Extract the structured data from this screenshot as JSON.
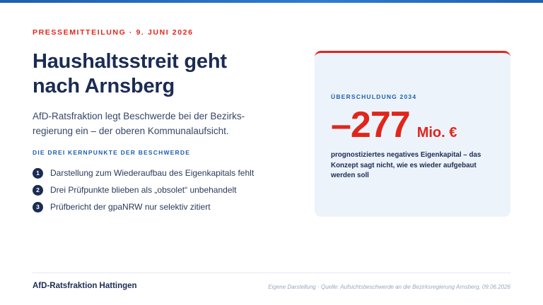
{
  "kicker": "PRESSEMITTEILUNG · 9. JUNI 2026",
  "headline": {
    "line1": "Haushaltsstreit geht",
    "line2": "nach Arnsberg"
  },
  "subtitle": "AfD-Ratsfraktion legt Beschwerde bei der Bezirks­regierung ein – der oberen Kommunalaufsicht.",
  "section_label": "DIE DREI KERNPUNKTE DER BESCHWERDE",
  "points": [
    {
      "num": "1",
      "text": "Darstellung zum Wiederaufbau des Eigenkapitals fehlt"
    },
    {
      "num": "2",
      "text": "Drei Prüfpunkte blieben als „obsolet“ unbehandelt"
    },
    {
      "num": "3",
      "text": "Prüfbericht der gpaNRW nur selektiv zitiert"
    }
  ],
  "card": {
    "label": "ÜBERSCHULDUNG 2034",
    "value": "–277",
    "unit": "Mio. €",
    "description": "prognostiziertes negatives Eigenkapital – das Konzept sagt nicht, wie es wieder aufgebaut werden soll"
  },
  "footer": {
    "brand": "AfD-Ratsfraktion Hattingen",
    "source": "Eigene Darstellung · Quelle: Aufsichtsbeschwerde an die Bezirksregierung Arnsberg, 09.06.2026"
  },
  "colors": {
    "accent_red": "#e1251b",
    "navy": "#1b2c53",
    "blue": "#1f5fae",
    "card_bg": "#edf3fb"
  }
}
